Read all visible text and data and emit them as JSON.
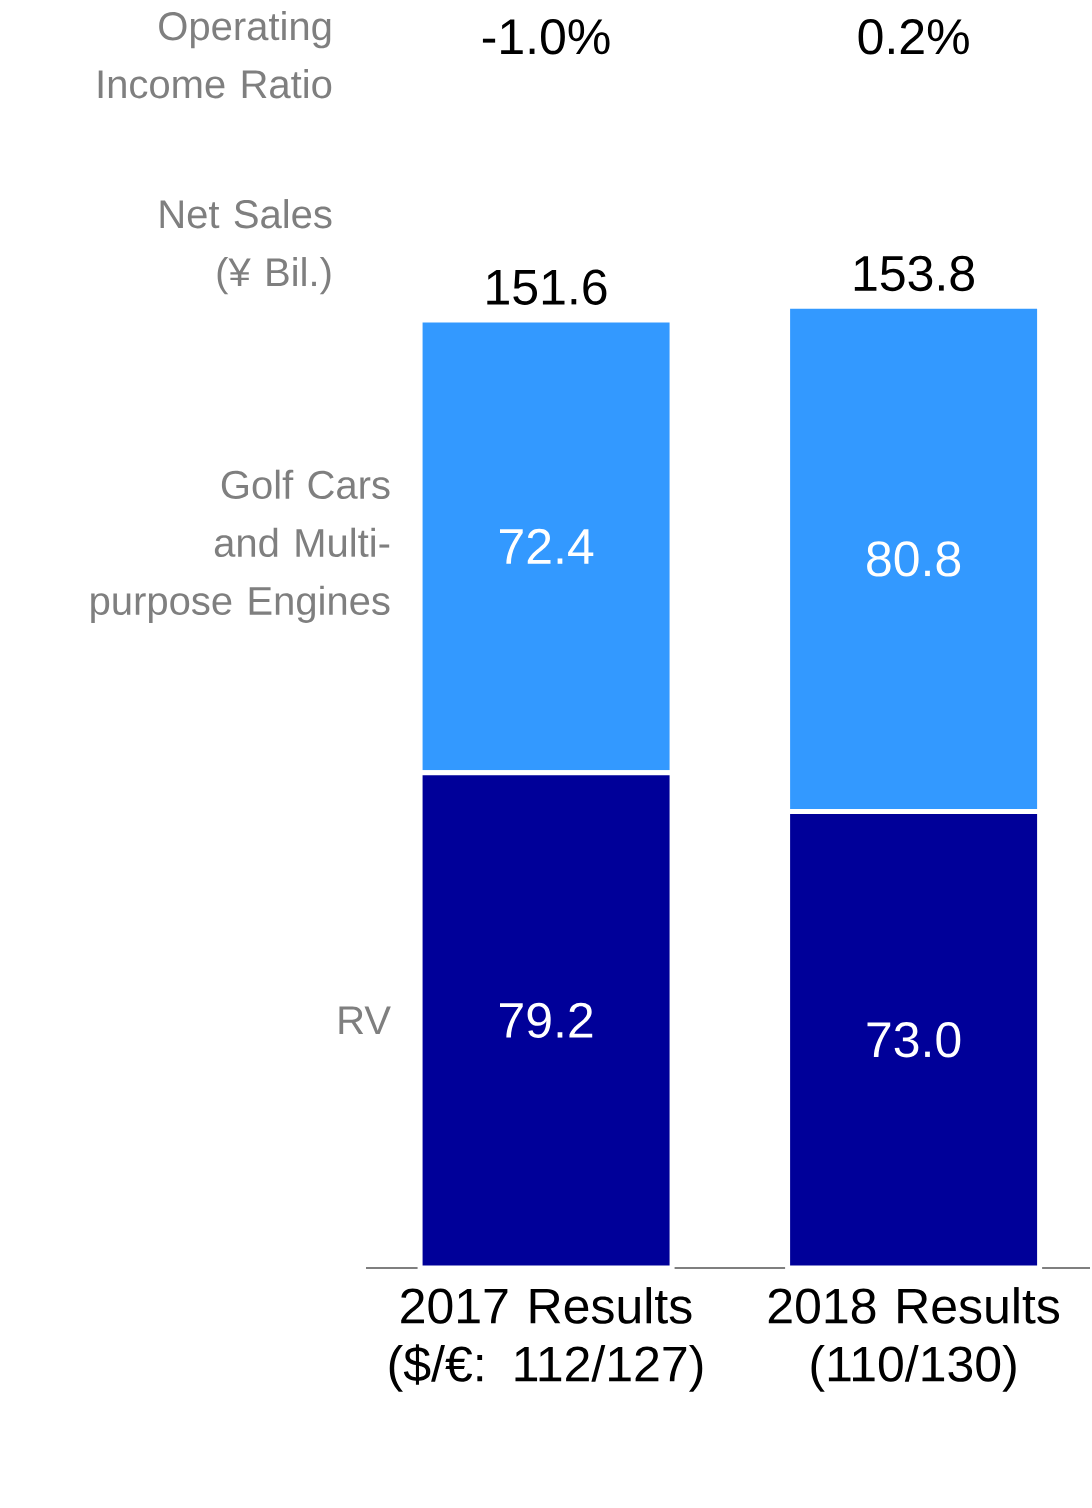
{
  "chart_data": {
    "type": "bar",
    "stacked": true,
    "ylabel": "Net Sales (¥ Bil.)",
    "categories": [
      "2017 Results ($/€: 112/127)",
      "2018 Results (110/130)"
    ],
    "series": [
      {
        "name": "RV",
        "color": "#000099",
        "values": [
          79.2,
          73.0
        ],
        "value_labels": [
          "79.2",
          "73.0"
        ]
      },
      {
        "name": "Golf Cars and Multi-purpose Engines",
        "color": "#3399ff",
        "values": [
          72.4,
          80.8
        ],
        "value_labels": [
          "72.4",
          "80.8"
        ]
      }
    ],
    "totals": [
      "151.6",
      "153.8"
    ],
    "annotations": [
      "Operating Income Ratio",
      "-1.0%",
      "0.2%"
    ]
  }
}
